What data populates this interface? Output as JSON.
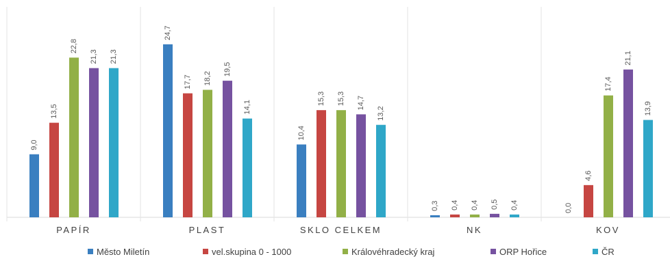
{
  "chart_data": {
    "type": "bar",
    "categories": [
      "PAPÍR",
      "PLAST",
      "SKLO CELKEM",
      "NK",
      "KOV"
    ],
    "series": [
      {
        "name": "Město Miletín",
        "color": "#3a7fc0",
        "values": [
          9.0,
          24.7,
          10.4,
          0.3,
          0.0
        ],
        "labels": [
          "9,0",
          "24,7",
          "10,4",
          "0,3",
          "0,0"
        ]
      },
      {
        "name": "vel.skupina 0 - 1000",
        "color": "#c64642",
        "values": [
          13.5,
          17.7,
          15.3,
          0.4,
          4.6
        ],
        "labels": [
          "13,5",
          "17,7",
          "15,3",
          "0,4",
          "4,6"
        ]
      },
      {
        "name": "Královéhradecký kraj",
        "color": "#92b047",
        "values": [
          22.8,
          18.2,
          15.3,
          0.4,
          17.4
        ],
        "labels": [
          "22,8",
          "18,2",
          "15,3",
          "0,4",
          "17,4"
        ]
      },
      {
        "name": "ORP Hořice",
        "color": "#7652a0",
        "values": [
          21.3,
          19.5,
          14.7,
          0.5,
          21.1
        ],
        "labels": [
          "21,3",
          "19,5",
          "14,7",
          "0,5",
          "21,1"
        ]
      },
      {
        "name": "ČR",
        "color": "#2fa7c8",
        "values": [
          21.3,
          14.1,
          13.2,
          0.4,
          13.9
        ],
        "labels": [
          "21,3",
          "14,1",
          "13,2",
          "0,4",
          "13,9"
        ]
      }
    ],
    "ylim": [
      0,
      28
    ],
    "grid": "vertical category separators",
    "legend": "bottom"
  }
}
